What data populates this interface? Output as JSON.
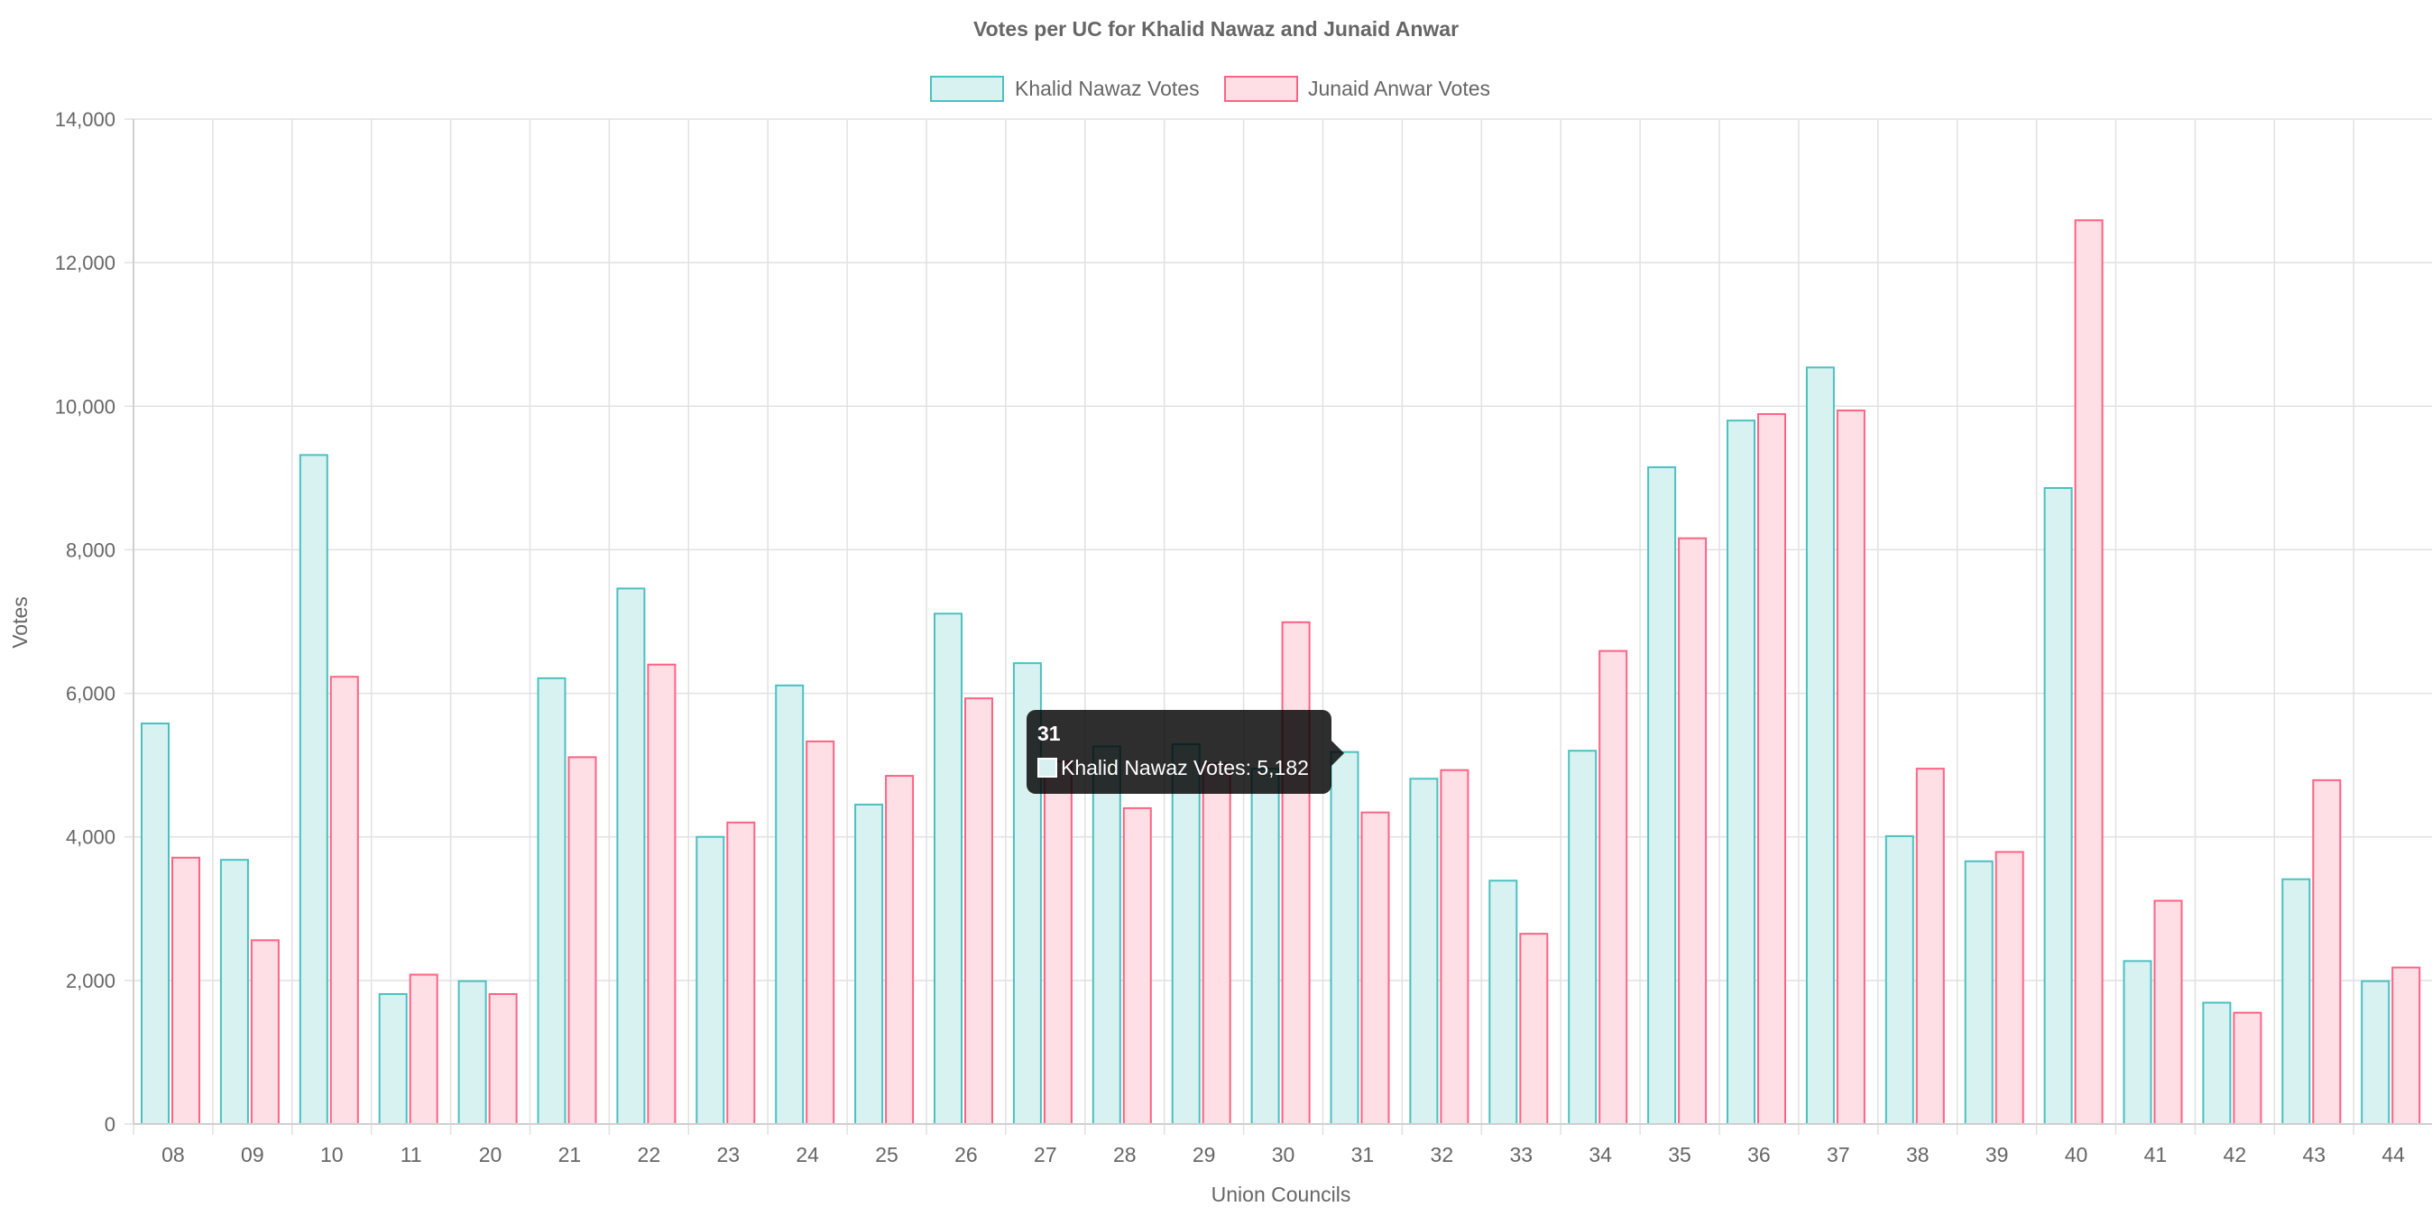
{
  "chart_data": {
    "type": "bar",
    "title": "Votes per UC for Khalid Nawaz and Junaid Anwar",
    "xlabel": "Union Councils",
    "ylabel": "Votes",
    "ylim": [
      0,
      14000
    ],
    "yticks": [
      "0",
      "2,000",
      "4,000",
      "6,000",
      "8,000",
      "10,000",
      "12,000",
      "14,000"
    ],
    "grid": true,
    "legend_position": "top",
    "categories": [
      "08",
      "09",
      "10",
      "11",
      "20",
      "21",
      "22",
      "23",
      "24",
      "25",
      "26",
      "27",
      "28",
      "29",
      "30",
      "31",
      "32",
      "33",
      "34",
      "35",
      "36",
      "37",
      "38",
      "39",
      "40",
      "41",
      "42",
      "43",
      "44"
    ],
    "series": [
      {
        "name": "Khalid Nawaz Votes",
        "stroke": "#4bc0c0",
        "fill": "#d8f2f2",
        "values": [
          5580,
          3680,
          9320,
          1810,
          1990,
          6210,
          7460,
          4000,
          6110,
          4450,
          7110,
          6420,
          5260,
          5290,
          4950,
          5182,
          4810,
          3390,
          5200,
          9150,
          9800,
          10540,
          4010,
          3660,
          8860,
          2270,
          1690,
          3410,
          1990
        ]
      },
      {
        "name": "Junaid Anwar Votes",
        "stroke": "#ff6384",
        "fill": "#ffdfe6",
        "values": [
          3710,
          2560,
          6230,
          2080,
          1810,
          5110,
          6400,
          4200,
          5330,
          4850,
          5930,
          5050,
          4400,
          5020,
          6990,
          4340,
          4930,
          2650,
          6590,
          8160,
          9890,
          9940,
          4950,
          3790,
          12590,
          3110,
          1550,
          4790,
          2180
        ]
      }
    ]
  },
  "tooltip": {
    "title": "31",
    "label": "Khalid Nawaz Votes: 5,182"
  }
}
